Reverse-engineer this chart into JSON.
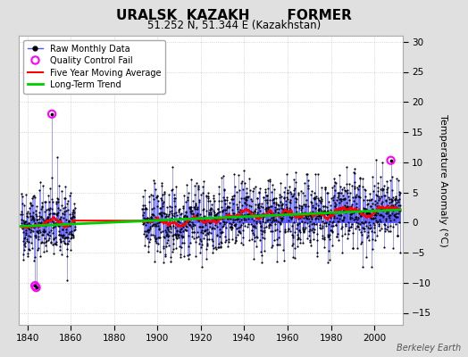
{
  "title": "URALSK  KAZAKH        FORMER",
  "subtitle": "51.252 N, 51.344 E (Kazakhstan)",
  "watermark": "Berkeley Earth",
  "ylabel": "Temperature Anomaly (°C)",
  "xlim": [
    1836,
    2013
  ],
  "ylim": [
    -17,
    31
  ],
  "yticks": [
    -15,
    -10,
    -5,
    0,
    5,
    10,
    15,
    20,
    25,
    30
  ],
  "xticks": [
    1840,
    1860,
    1880,
    1900,
    1920,
    1940,
    1960,
    1980,
    2000
  ],
  "bg_color": "#e0e0e0",
  "plot_bg_color": "#ffffff",
  "raw_line_color": "#5555ff",
  "raw_marker_color": "#000000",
  "qc_fail_color": "#ff00ff",
  "moving_avg_color": "#ff0000",
  "trend_color": "#00cc00",
  "seed": 42
}
